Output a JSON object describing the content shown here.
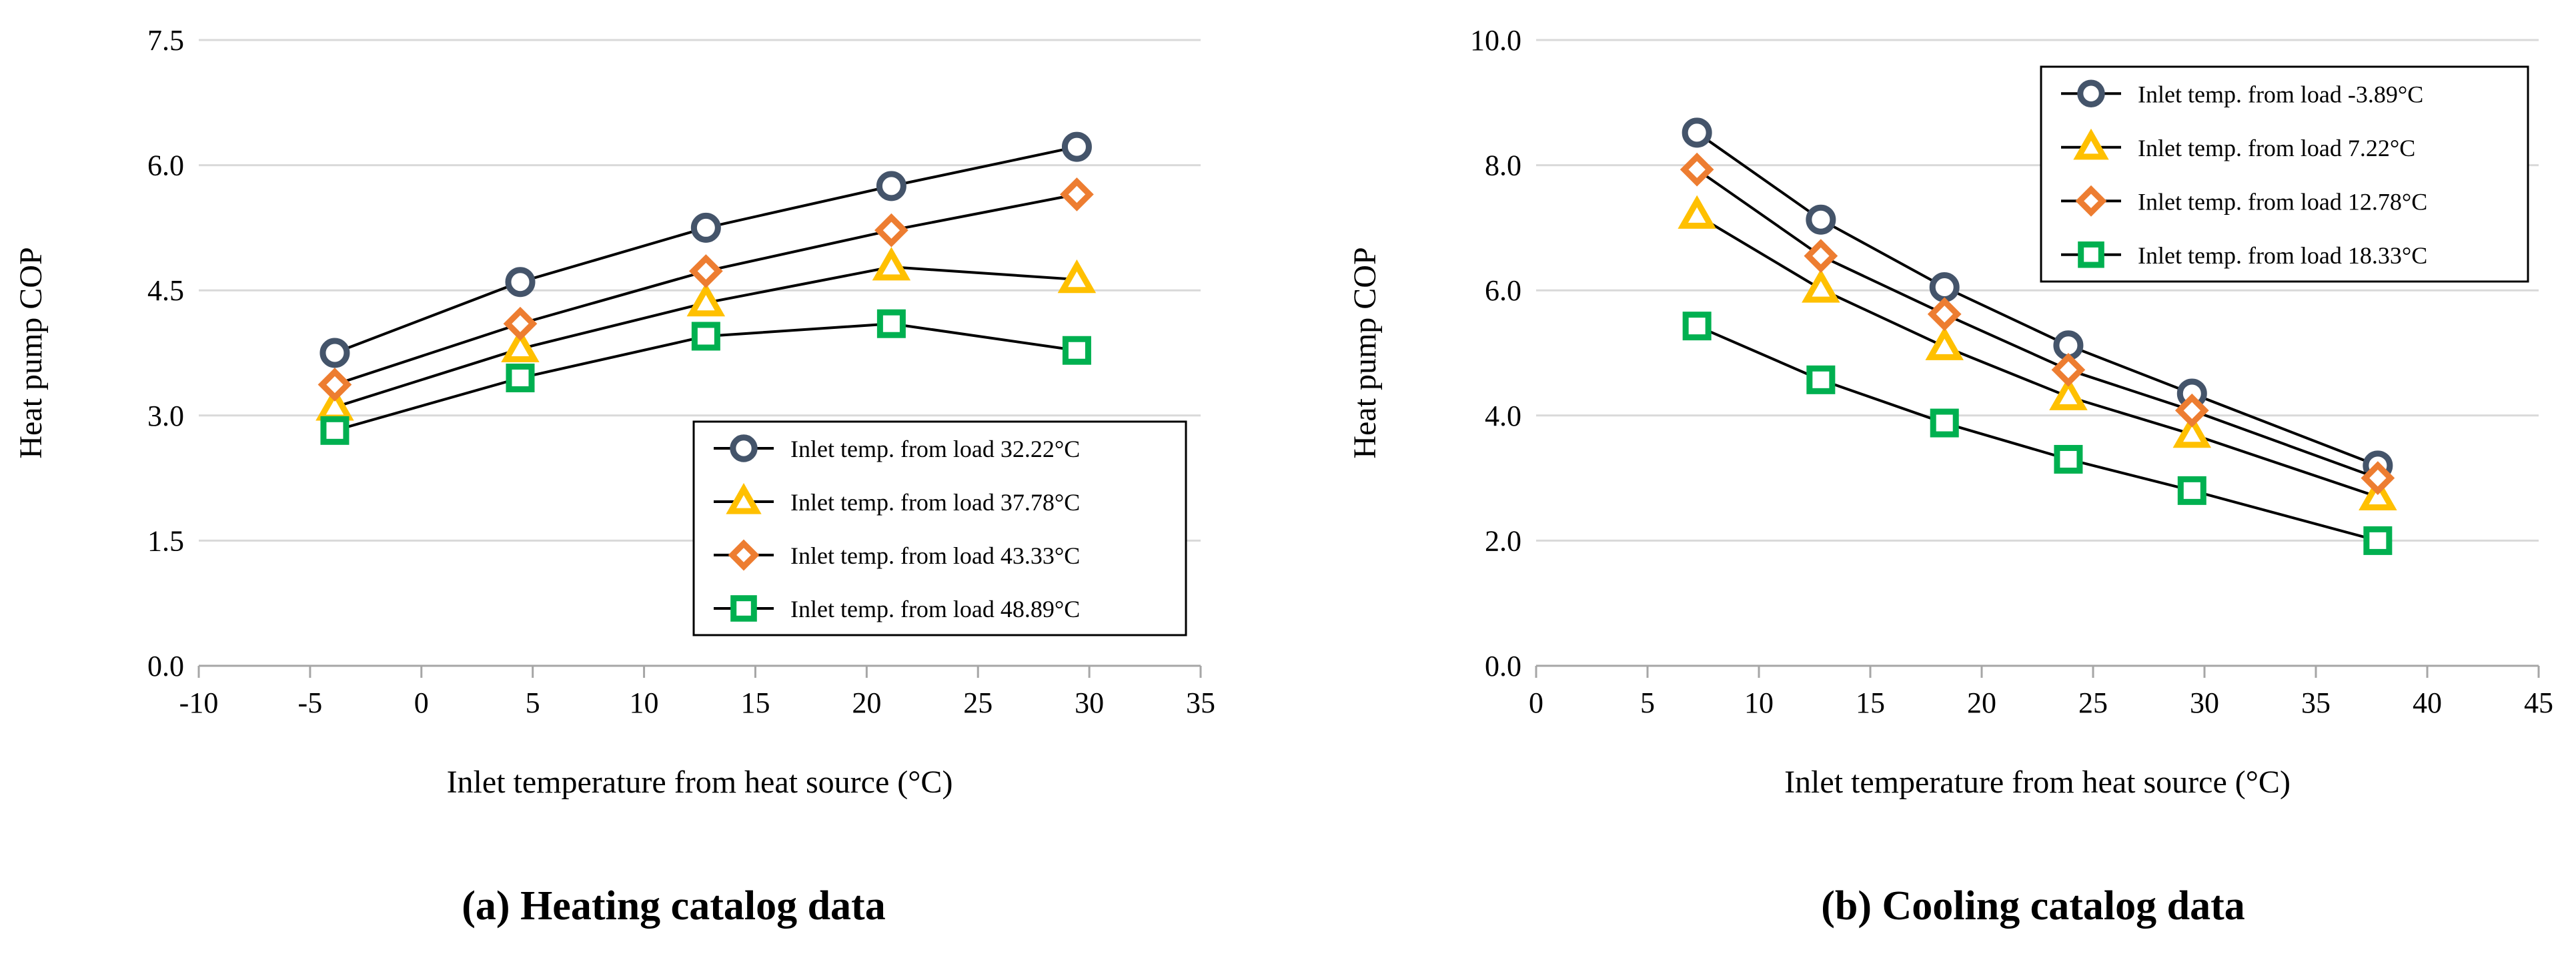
{
  "chart_data": [
    {
      "type": "line",
      "caption": "(a) Heating catalog data",
      "xlabel": "Inlet temperature from heat source (°C)",
      "ylabel": "Heat pump COP",
      "xlim": [
        -10,
        35
      ],
      "ylim": [
        0,
        7.5
      ],
      "xticks": [
        "-10",
        "-5",
        "0",
        "5",
        "10",
        "15",
        "20",
        "25",
        "30",
        "35"
      ],
      "yticks": [
        "0.0",
        "1.5",
        "3.0",
        "4.5",
        "6.0",
        "7.5"
      ],
      "grid": "horizontal",
      "legend_position": "bottom-right",
      "x": [
        -3.89,
        4.44,
        12.78,
        21.11,
        29.44
      ],
      "series": [
        {
          "name": "Inlet temp. from load 32.22°C",
          "marker": "circle",
          "color": "#44546a",
          "values": [
            3.75,
            4.6,
            5.25,
            5.75,
            6.22
          ]
        },
        {
          "name": "Inlet temp. from load 37.78°C",
          "marker": "triangle",
          "color": "#ffc000",
          "values": [
            3.1,
            3.8,
            4.35,
            4.78,
            4.63
          ]
        },
        {
          "name": "Inlet temp. from load 43.33°C",
          "marker": "diamond",
          "color": "#ed7d31",
          "values": [
            3.37,
            4.1,
            4.73,
            5.22,
            5.65
          ]
        },
        {
          "name": "Inlet temp. from load 48.89°C",
          "marker": "square",
          "color": "#00b050",
          "values": [
            2.82,
            3.45,
            3.95,
            4.1,
            3.78
          ]
        }
      ]
    },
    {
      "type": "line",
      "caption": "(b) Cooling catalog data",
      "xlabel": "Inlet temperature from heat source (°C)",
      "ylabel": "Heat pump COP",
      "xlim": [
        0,
        45
      ],
      "ylim": [
        0,
        10
      ],
      "xticks": [
        "0",
        "5",
        "10",
        "15",
        "20",
        "25",
        "30",
        "35",
        "40",
        "45"
      ],
      "yticks": [
        "0.0",
        "2.0",
        "4.0",
        "6.0",
        "8.0",
        "10.0"
      ],
      "grid": "horizontal",
      "legend_position": "top-right",
      "x": [
        7.22,
        12.78,
        18.33,
        23.89,
        29.44,
        37.78
      ],
      "series": [
        {
          "name": "Inlet temp. from load -3.89°C",
          "marker": "circle",
          "color": "#44546a",
          "values": [
            8.52,
            7.13,
            6.05,
            5.12,
            4.35,
            3.2
          ]
        },
        {
          "name": "Inlet temp. from load 7.22°C",
          "marker": "triangle",
          "color": "#ffc000",
          "values": [
            7.2,
            6.02,
            5.1,
            4.3,
            3.7,
            2.7
          ]
        },
        {
          "name": "Inlet temp. from load 12.78°C",
          "marker": "diamond",
          "color": "#ed7d31",
          "values": [
            7.93,
            6.55,
            5.62,
            4.73,
            4.08,
            3.0
          ]
        },
        {
          "name": "Inlet temp. from load 18.33°C",
          "marker": "square",
          "color": "#00b050",
          "values": [
            5.43,
            4.57,
            3.88,
            3.3,
            2.8,
            2.0
          ]
        }
      ]
    }
  ]
}
